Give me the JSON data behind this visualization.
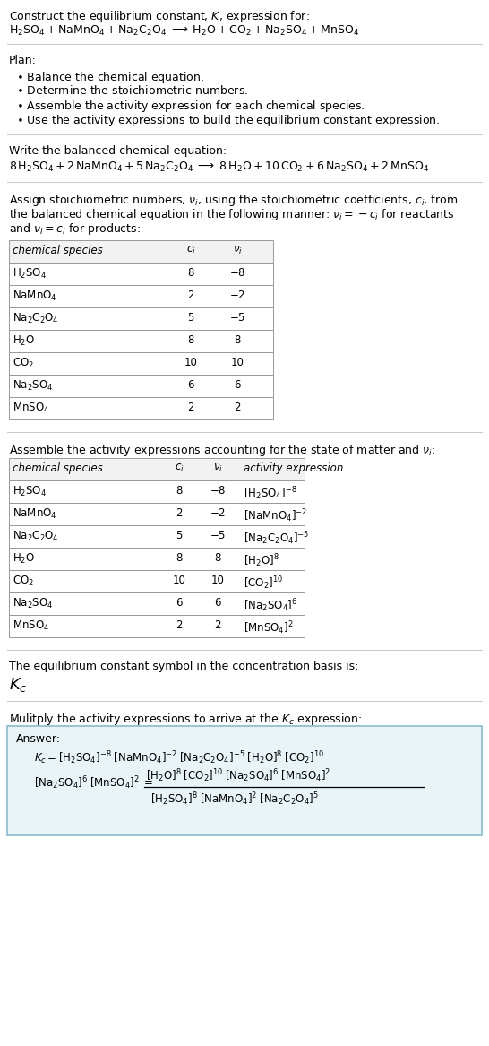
{
  "bg_color": "#ffffff",
  "table_border_color": "#999999",
  "table_header_bg": "#f2f2f2",
  "table_row_bg": "#ffffff",
  "answer_box_color": "#e8f4f8",
  "answer_box_border": "#88bbcc",
  "text_color": "#000000",
  "sep_color": "#bbbbbb",
  "font_size": 9.0,
  "small_font": 8.5,
  "kc_font": 13,
  "sections": {
    "title": {
      "line1": "Construct the equilibrium constant, $K$, expression for:",
      "line2_parts": [
        "$\\mathrm{H_2SO_4}$",
        " + ",
        "$\\mathrm{NaMnO_4}$",
        " + ",
        "$\\mathrm{Na_2C_2O_4}$",
        "  $\\longrightarrow$  ",
        "$\\mathrm{H_2O}$",
        " + ",
        "$\\mathrm{CO_2}$",
        " + ",
        "$\\mathrm{Na_2SO_4}$",
        " + ",
        "$\\mathrm{MnSO_4}$"
      ]
    },
    "plan": {
      "header": "Plan:",
      "items": [
        "$\\bullet$ Balance the chemical equation.",
        "$\\bullet$ Determine the stoichiometric numbers.",
        "$\\bullet$ Assemble the activity expression for each chemical species.",
        "$\\bullet$ Use the activity expressions to build the equilibrium constant expression."
      ]
    },
    "balanced": {
      "header": "Write the balanced chemical equation:",
      "eq": "$8\\,\\mathrm{H_2SO_4} + 2\\,\\mathrm{NaMnO_4} + 5\\,\\mathrm{Na_2C_2O_4}\\;\\longrightarrow\\;8\\,\\mathrm{H_2O} + 10\\,\\mathrm{CO_2} + 6\\,\\mathrm{Na_2SO_4} + 2\\,\\mathrm{MnSO_4}$"
    },
    "stoich": {
      "header_lines": [
        "Assign stoichiometric numbers, $\\nu_i$, using the stoichiometric coefficients, $c_i$, from",
        "the balanced chemical equation in the following manner: $\\nu_i = -c_i$ for reactants",
        "and $\\nu_i = c_i$ for products:"
      ],
      "cols": [
        "chemical species",
        "$c_i$",
        "$\\nu_i$"
      ],
      "rows": [
        [
          "$\\mathrm{H_2SO_4}$",
          "8",
          "$-8$"
        ],
        [
          "$\\mathrm{NaMnO_4}$",
          "2",
          "$-2$"
        ],
        [
          "$\\mathrm{Na_2C_2O_4}$",
          "5",
          "$-5$"
        ],
        [
          "$\\mathrm{H_2O}$",
          "8",
          "8"
        ],
        [
          "$\\mathrm{CO_2}$",
          "10",
          "10"
        ],
        [
          "$\\mathrm{Na_2SO_4}$",
          "6",
          "6"
        ],
        [
          "$\\mathrm{MnSO_4}$",
          "2",
          "2"
        ]
      ]
    },
    "activity": {
      "header": "Assemble the activity expressions accounting for the state of matter and $\\nu_i$:",
      "cols": [
        "chemical species",
        "$c_i$",
        "$\\nu_i$",
        "activity expression"
      ],
      "rows": [
        [
          "$\\mathrm{H_2SO_4}$",
          "8",
          "$-8$",
          "$[\\mathrm{H_2SO_4}]^{-8}$"
        ],
        [
          "$\\mathrm{NaMnO_4}$",
          "2",
          "$-2$",
          "$[\\mathrm{NaMnO_4}]^{-2}$"
        ],
        [
          "$\\mathrm{Na_2C_2O_4}$",
          "5",
          "$-5$",
          "$[\\mathrm{Na_2C_2O_4}]^{-5}$"
        ],
        [
          "$\\mathrm{H_2O}$",
          "8",
          "8",
          "$[\\mathrm{H_2O}]^{8}$"
        ],
        [
          "$\\mathrm{CO_2}$",
          "10",
          "10",
          "$[\\mathrm{CO_2}]^{10}$"
        ],
        [
          "$\\mathrm{Na_2SO_4}$",
          "6",
          "6",
          "$[\\mathrm{Na_2SO_4}]^{6}$"
        ],
        [
          "$\\mathrm{MnSO_4}$",
          "2",
          "2",
          "$[\\mathrm{MnSO_4}]^{2}$"
        ]
      ]
    },
    "kc": {
      "header": "The equilibrium constant symbol in the concentration basis is:",
      "symbol": "$K_c$"
    },
    "multiply": {
      "header": "Mulitply the activity expressions to arrive at the $K_c$ expression:",
      "answer_label": "Answer:",
      "line1": "$K_c = [\\mathrm{H_2SO_4}]^{-8}\\;[\\mathrm{NaMnO_4}]^{-2}\\;[\\mathrm{Na_2C_2O_4}]^{-5}\\;[\\mathrm{H_2O}]^{8}\\;[\\mathrm{CO_2}]^{10}$",
      "line2a": "$[\\mathrm{Na_2SO_4}]^{6}\\;[\\mathrm{MnSO_4}]^{2}\\;=\\;$",
      "line2_num": "$[\\mathrm{H_2O}]^{8}\\;[\\mathrm{CO_2}]^{10}\\;[\\mathrm{Na_2SO_4}]^{6}\\;[\\mathrm{MnSO_4}]^{2}$",
      "line2_den": "$[\\mathrm{H_2SO_4}]^{8}\\;[\\mathrm{NaMnO_4}]^{2}\\;[\\mathrm{Na_2C_2O_4}]^{5}$"
    }
  }
}
